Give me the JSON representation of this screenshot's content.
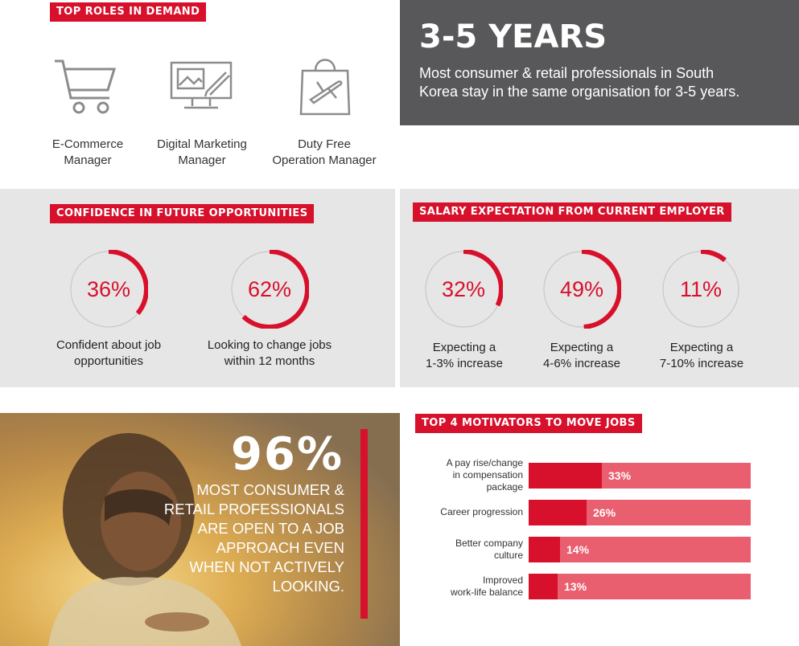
{
  "top_roles": {
    "tag": "TOP ROLES IN DEMAND",
    "roles": [
      {
        "icon": "shopping-cart-icon",
        "line1": "E-Commerce",
        "line2": "Manager"
      },
      {
        "icon": "monitor-pen-icon",
        "line1": "Digital Marketing",
        "line2": "Manager"
      },
      {
        "icon": "shopping-bag-plane-icon",
        "line1": "Duty Free",
        "line2": "Operation Manager"
      }
    ]
  },
  "tenure": {
    "headline": "3-5 YEARS",
    "text_line1": "Most consumer & retail professionals in South",
    "text_line2": "Korea stay in the same organisation for 3-5 years."
  },
  "confidence": {
    "tag": "CONFIDENCE IN FUTURE OPPORTUNITIES",
    "items": [
      {
        "percent": 36,
        "label": "36%",
        "line1": "Confident about job",
        "line2": "opportunities"
      },
      {
        "percent": 62,
        "label": "62%",
        "line1": "Looking to change jobs",
        "line2": "within 12 months"
      }
    ]
  },
  "salary": {
    "tag": "SALARY EXPECTATION FROM CURRENT EMPLOYER",
    "items": [
      {
        "percent": 32,
        "label": "32%",
        "line1": "Expecting a",
        "line2": "1-3% increase"
      },
      {
        "percent": 49,
        "label": "49%",
        "line1": "Expecting a",
        "line2": "4-6% increase"
      },
      {
        "percent": 11,
        "label": "11%",
        "line1": "Expecting a",
        "line2": "7-10% increase"
      }
    ]
  },
  "open_to_approach": {
    "big_number": "96%",
    "lines": [
      "MOST CONSUMER &",
      "RETAIL PROFESSIONALS",
      "ARE OPEN TO A JOB",
      "APPROACH EVEN",
      "WHEN NOT ACTIVELY",
      "LOOKING."
    ]
  },
  "motivators": {
    "tag": "TOP 4 MOTIVATORS TO MOVE JOBS",
    "items": [
      {
        "lines": [
          "A pay rise/change",
          "in compensation",
          "package"
        ],
        "value": 33,
        "label": "33%"
      },
      {
        "lines": [
          "Career progression"
        ],
        "value": 26,
        "label": "26%"
      },
      {
        "lines": [
          "Better company",
          "culture"
        ],
        "value": 14,
        "label": "14%"
      },
      {
        "lines": [
          "Improved",
          "work-life balance"
        ],
        "value": 13,
        "label": "13%"
      }
    ]
  },
  "colors": {
    "accent": "#d7102b",
    "bar_light": "#e95f70",
    "panel": "#e6e6e7",
    "dark_panel": "#58585a",
    "ring_track": "#c8c8c8"
  }
}
